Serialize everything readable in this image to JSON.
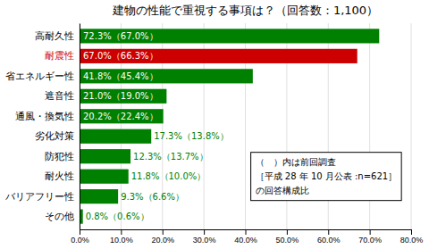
{
  "chart_data": {
    "type": "bar",
    "orientation": "horizontal",
    "title": "建物の性能で重視する事項は？（回答数：1,100）",
    "categories": [
      "その他",
      "バリアフリー性",
      "耐火性",
      "防犯性",
      "劣化対策",
      "通風・換気性",
      "遮音性",
      "省エネルギー性",
      "耐震性",
      "高耐久性"
    ],
    "values": [
      0.8,
      9.3,
      11.8,
      12.3,
      17.3,
      20.2,
      21.0,
      41.8,
      67.0,
      72.3
    ],
    "value_labels": [
      "0.8%",
      "9.3%",
      "11.8%",
      "12.3%",
      "17.3%",
      "20.2%",
      "21.0%",
      "41.8%",
      "67.0%",
      "72.3%"
    ],
    "prev_values": [
      0.6,
      6.6,
      10.0,
      13.7,
      13.8,
      22.4,
      19.0,
      45.4,
      66.3,
      67.0
    ],
    "prev_value_labels": [
      "（0.6%）",
      "（6.6%）",
      "（10.0%）",
      "（13.7%）",
      "（13.8%）",
      "（22.4%）",
      "（19.0%）",
      "（45.4%）",
      "（66.3%）",
      "（67.0%）"
    ],
    "colors": [
      "#008000",
      "#008000",
      "#008000",
      "#008000",
      "#008000",
      "#008000",
      "#008000",
      "#008000",
      "#cc0000",
      "#008000"
    ],
    "annotations": [
      "（　）内は前回調査",
      "［平成 28 年 10 月公表 :n=621］",
      "の回答構成比"
    ],
    "xlim": [
      0,
      80
    ],
    "xticks": [
      {
        "value": 0,
        "label": "0.0%"
      },
      {
        "value": 10,
        "label": "10.0%"
      },
      {
        "value": 20,
        "label": "20.0%"
      },
      {
        "value": 30,
        "label": "30.0%"
      },
      {
        "value": 40,
        "label": "40.0%"
      },
      {
        "value": 50,
        "label": "50.0%"
      },
      {
        "value": 60,
        "label": "60.0%"
      },
      {
        "value": 70,
        "label": "70.0%"
      },
      {
        "value": 80,
        "label": "80.0%"
      }
    ],
    "grid": true,
    "data_labels": true
  }
}
